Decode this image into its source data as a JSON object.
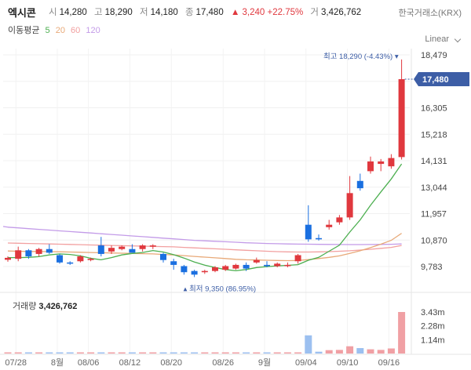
{
  "header": {
    "name": "엑시콘",
    "open_label": "시",
    "open": "14,280",
    "high_label": "고",
    "high": "18,290",
    "low_label": "저",
    "low": "14,180",
    "close_label": "종",
    "close": "17,480",
    "change": "▲ 3,240 +22.75%",
    "volume_label": "거",
    "volume": "3,426,762",
    "exchange": "한국거래소(KRX)"
  },
  "ma_legend": {
    "title": "이동평균",
    "p5": "5",
    "p20": "20",
    "p60": "60",
    "p120": "120"
  },
  "scale_mode": "Linear",
  "annotations": {
    "high": "최고 18,290 (-4.43%)",
    "low": "최저 9,350 (86.95%)",
    "current": "17,480"
  },
  "volume_title": "거래량",
  "volume_value": "3,426,762",
  "colors": {
    "up": "#e0383e",
    "down": "#1a6fe0",
    "ma5": "#4caf50",
    "ma20": "#e8a978",
    "ma60": "#f2a0a0",
    "ma120": "#c39be8",
    "badge": "#3d5ea6"
  },
  "chart_data": {
    "type": "candlestick",
    "price_axis": {
      "ticks": [
        "18,479",
        "17,392",
        "16,305",
        "15,218",
        "14,131",
        "13,044",
        "11,957",
        "10,870",
        "9,783"
      ],
      "range": [
        9350,
        18479
      ]
    },
    "volume_axis": {
      "ticks": [
        "3.43m",
        "2.28m",
        "1.14m"
      ],
      "range": [
        0,
        3426762
      ]
    },
    "x_ticks": [
      "07/28",
      "8월",
      "08/06",
      "08/12",
      "08/20",
      "08/26",
      "9월",
      "09/04",
      "09/10",
      "09/16"
    ],
    "candles": [
      {
        "o": 10060,
        "h": 10200,
        "l": 9980,
        "c": 10140
      },
      {
        "o": 10100,
        "h": 10600,
        "l": 10000,
        "c": 10450
      },
      {
        "o": 10450,
        "h": 10500,
        "l": 10100,
        "c": 10200
      },
      {
        "o": 10300,
        "h": 10550,
        "l": 10200,
        "c": 10500
      },
      {
        "o": 10500,
        "h": 10700,
        "l": 10300,
        "c": 10350
      },
      {
        "o": 10250,
        "h": 10300,
        "l": 9900,
        "c": 9950
      },
      {
        "o": 9950,
        "h": 10000,
        "l": 9850,
        "c": 9900
      },
      {
        "o": 10000,
        "h": 10250,
        "l": 9950,
        "c": 10200
      },
      {
        "o": 10050,
        "h": 10150,
        "l": 10000,
        "c": 10100
      },
      {
        "o": 10650,
        "h": 11000,
        "l": 10200,
        "c": 10300
      },
      {
        "o": 10400,
        "h": 10650,
        "l": 10300,
        "c": 10550
      },
      {
        "o": 10500,
        "h": 10650,
        "l": 10450,
        "c": 10600
      },
      {
        "o": 10500,
        "h": 10700,
        "l": 10400,
        "c": 10350
      },
      {
        "o": 10500,
        "h": 10700,
        "l": 10400,
        "c": 10650
      },
      {
        "o": 10600,
        "h": 10700,
        "l": 10500,
        "c": 10650
      },
      {
        "o": 10300,
        "h": 10350,
        "l": 9950,
        "c": 10050
      },
      {
        "o": 10000,
        "h": 10100,
        "l": 9650,
        "c": 9850
      },
      {
        "o": 9800,
        "h": 9850,
        "l": 9450,
        "c": 9550
      },
      {
        "o": 9600,
        "h": 9650,
        "l": 9350,
        "c": 9450
      },
      {
        "o": 9550,
        "h": 9650,
        "l": 9480,
        "c": 9600
      },
      {
        "o": 9600,
        "h": 9800,
        "l": 9550,
        "c": 9750
      },
      {
        "o": 9650,
        "h": 9850,
        "l": 9600,
        "c": 9800
      },
      {
        "o": 9700,
        "h": 9900,
        "l": 9650,
        "c": 9850
      },
      {
        "o": 9850,
        "h": 9950,
        "l": 9600,
        "c": 9700
      },
      {
        "o": 9950,
        "h": 10150,
        "l": 9900,
        "c": 10050
      },
      {
        "o": 9850,
        "h": 10000,
        "l": 9750,
        "c": 9800
      },
      {
        "o": 9800,
        "h": 9950,
        "l": 9750,
        "c": 9900
      },
      {
        "o": 9800,
        "h": 9950,
        "l": 9750,
        "c": 9850
      },
      {
        "o": 10000,
        "h": 10300,
        "l": 9900,
        "c": 10250
      },
      {
        "o": 11500,
        "h": 12300,
        "l": 10800,
        "c": 10900
      },
      {
        "o": 10950,
        "h": 11100,
        "l": 10850,
        "c": 10900
      },
      {
        "o": 11400,
        "h": 11700,
        "l": 11300,
        "c": 11500
      },
      {
        "o": 11600,
        "h": 11900,
        "l": 11500,
        "c": 11800
      },
      {
        "o": 11800,
        "h": 13500,
        "l": 11700,
        "c": 12800
      },
      {
        "o": 13300,
        "h": 13600,
        "l": 12900,
        "c": 13000
      },
      {
        "o": 13700,
        "h": 14300,
        "l": 13600,
        "c": 14100
      },
      {
        "o": 14000,
        "h": 14200,
        "l": 13700,
        "c": 14100
      },
      {
        "o": 13900,
        "h": 14400,
        "l": 13800,
        "c": 14240
      },
      {
        "o": 14280,
        "h": 18290,
        "l": 14180,
        "c": 17480
      }
    ],
    "volumes": [
      40000,
      30000,
      20000,
      40000,
      30000,
      20000,
      20000,
      30000,
      20000,
      40000,
      30000,
      20000,
      20000,
      30000,
      20000,
      30000,
      20000,
      30000,
      20000,
      20000,
      20000,
      20000,
      20000,
      30000,
      20000,
      20000,
      20000,
      20000,
      30000,
      1500000,
      150000,
      280000,
      300000,
      600000,
      450000,
      350000,
      300000,
      420000,
      3426762
    ],
    "ma5": [
      10150,
      10150,
      10160,
      10190,
      10260,
      10300,
      10280,
      10220,
      10120,
      10060,
      10150,
      10260,
      10320,
      10360,
      10440,
      10380,
      10270,
      10130,
      9970,
      9840,
      9740,
      9660,
      9610,
      9660,
      9740,
      9780,
      9810,
      9830,
      9860,
      10040,
      10160,
      10410,
      10660,
      11200,
      11700,
      12300,
      12850,
      13380,
      14000
    ],
    "ma20": [
      10420,
      10410,
      10400,
      10400,
      10395,
      10390,
      10380,
      10370,
      10360,
      10350,
      10340,
      10330,
      10320,
      10310,
      10300,
      10280,
      10260,
      10230,
      10200,
      10170,
      10140,
      10110,
      10080,
      10060,
      10050,
      10040,
      10030,
      10025,
      10030,
      10070,
      10110,
      10160,
      10220,
      10320,
      10430,
      10560,
      10700,
      10860,
      11150
    ],
    "ma60": [
      10750,
      10740,
      10730,
      10720,
      10710,
      10700,
      10690,
      10680,
      10670,
      10660,
      10650,
      10640,
      10630,
      10620,
      10610,
      10600,
      10590,
      10570,
      10550,
      10530,
      10510,
      10490,
      10470,
      10450,
      10430,
      10410,
      10395,
      10385,
      10380,
      10380,
      10385,
      10395,
      10410,
      10430,
      10460,
      10490,
      10530,
      10570,
      10650
    ],
    "ma120": [
      11400,
      11370,
      11340,
      11310,
      11280,
      11250,
      11220,
      11190,
      11160,
      11130,
      11100,
      11070,
      11040,
      11010,
      10980,
      10950,
      10920,
      10890,
      10860,
      10840,
      10820,
      10800,
      10780,
      10760,
      10745,
      10730,
      10720,
      10710,
      10705,
      10700,
      10695,
      10690,
      10688,
      10686,
      10686,
      10688,
      10692,
      10698,
      10710
    ]
  }
}
